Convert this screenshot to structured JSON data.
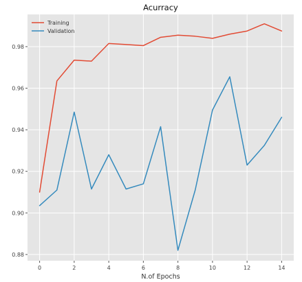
{
  "chart_data": {
    "type": "line",
    "title": "Acurracy",
    "xlabel": "N.of Epochs",
    "ylabel": "",
    "x": [
      0,
      1,
      2,
      3,
      4,
      5,
      6,
      7,
      8,
      9,
      10,
      11,
      12,
      13,
      14
    ],
    "series": [
      {
        "name": "Training",
        "color": "#e24a33",
        "values": [
          0.91,
          0.9635,
          0.9735,
          0.973,
          0.9815,
          0.981,
          0.9805,
          0.9845,
          0.9855,
          0.985,
          0.984,
          0.986,
          0.9875,
          0.991,
          0.9875
        ]
      },
      {
        "name": "Validation",
        "color": "#348abd",
        "values": [
          0.9035,
          0.911,
          0.9485,
          0.9115,
          0.928,
          0.9115,
          0.914,
          0.9415,
          0.882,
          0.911,
          0.9495,
          0.9655,
          0.923,
          0.9325,
          0.946
        ]
      }
    ],
    "xlim": [
      -0.7,
      14.7
    ],
    "ylim": [
      0.877,
      0.9955
    ],
    "xticks": [
      0,
      2,
      4,
      6,
      8,
      10,
      12,
      14
    ],
    "yticks": [
      0.88,
      0.9,
      0.92,
      0.94,
      0.96,
      0.98
    ],
    "ytick_labels": [
      "0.88",
      "0.90",
      "0.92",
      "0.94",
      "0.96",
      "0.98"
    ],
    "grid": true,
    "legend_position": "top-left",
    "background_color": "#e5e5e5",
    "grid_color": "#ffffff"
  }
}
